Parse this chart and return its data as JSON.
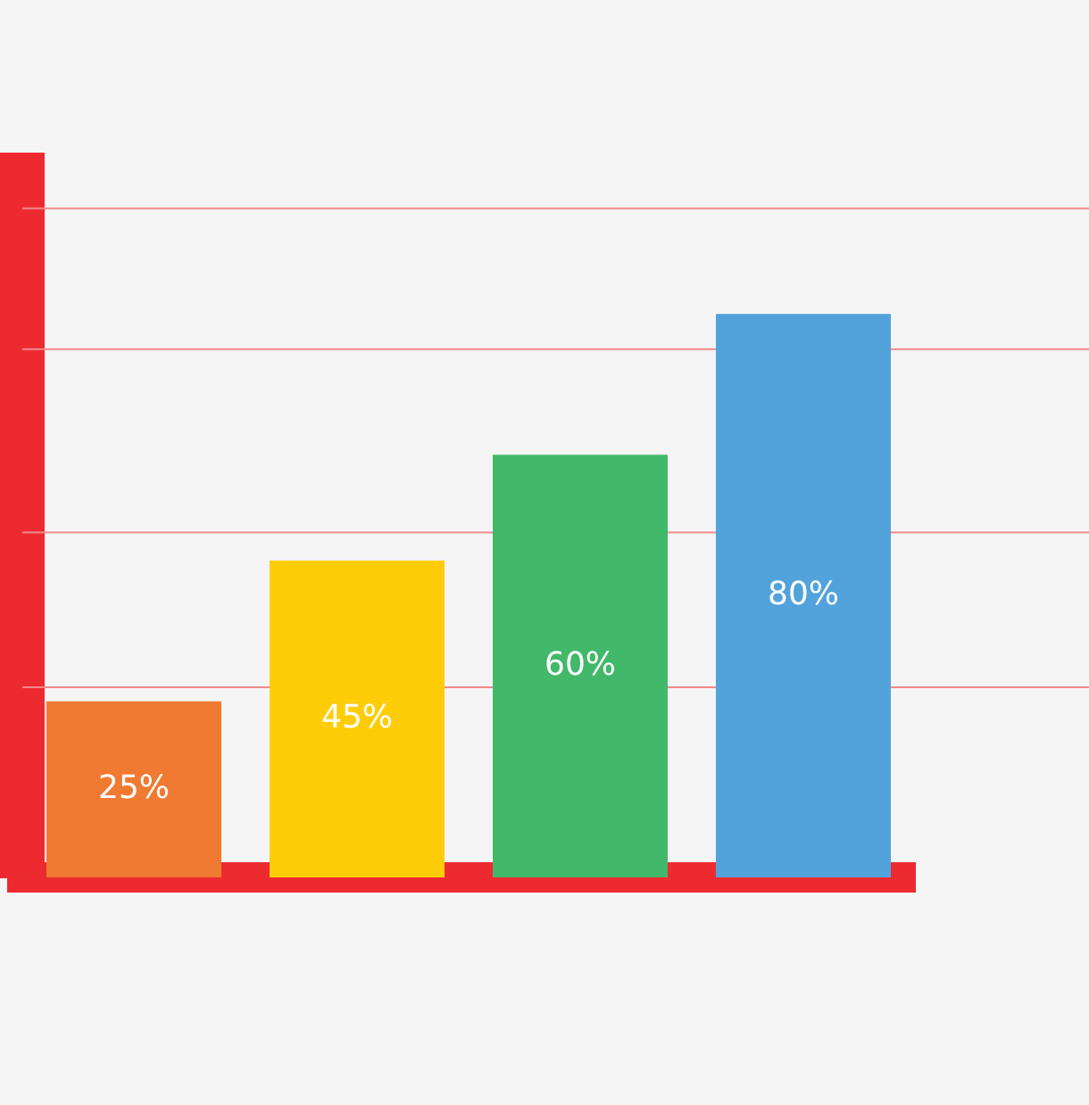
{
  "chart_data": {
    "type": "bar",
    "categories": [
      null,
      null,
      null,
      null
    ],
    "values": [
      25,
      45,
      60,
      80
    ],
    "colors": [
      "#f07a32",
      "#fecd08",
      "#41b86a",
      "#52a3db"
    ],
    "value_labels": [
      "25%",
      "45%",
      "60%",
      "80%"
    ],
    "ref_lines": [
      {
        "axis": "y",
        "value": 27,
        "color": "#f08a8a"
      },
      {
        "axis": "y",
        "value": 49,
        "color": "#f08a8a"
      },
      {
        "axis": "y",
        "value": 75,
        "color": "#f08a8a"
      },
      {
        "axis": "y",
        "value": 95,
        "color": "#f08a8a"
      }
    ],
    "legend": false
  }
}
